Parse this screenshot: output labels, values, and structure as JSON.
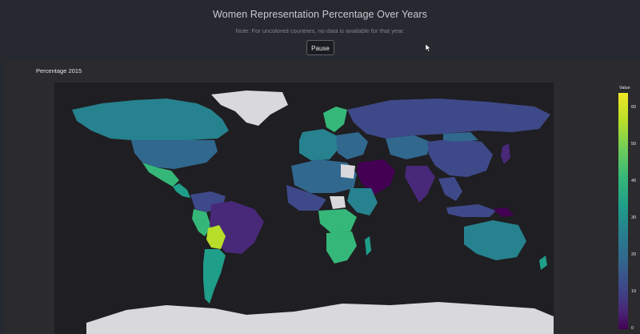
{
  "header": {
    "title": "Women Representation Percentage Over Years",
    "note": "Note: For uncolored countries, no data is available for that year.",
    "pause_label": "Pause"
  },
  "panel": {
    "title": "Percentage 2015"
  },
  "colorbar": {
    "label": "Value",
    "ticks": [
      "60",
      "50",
      "40",
      "30",
      "20",
      "10",
      "0"
    ],
    "range": [
      0,
      64
    ],
    "colors": [
      "#440154",
      "#482878",
      "#3e4989",
      "#31688e",
      "#26828e",
      "#1f9e89",
      "#35b779",
      "#6ccd5a",
      "#b8de29",
      "#f0e824"
    ]
  },
  "map": {
    "type": "choropleth",
    "projection": "world",
    "no_data_color": "#d9d9dc",
    "background": "#1f1e22"
  },
  "icons": {
    "cursor": "mouse-pointer-icon"
  }
}
